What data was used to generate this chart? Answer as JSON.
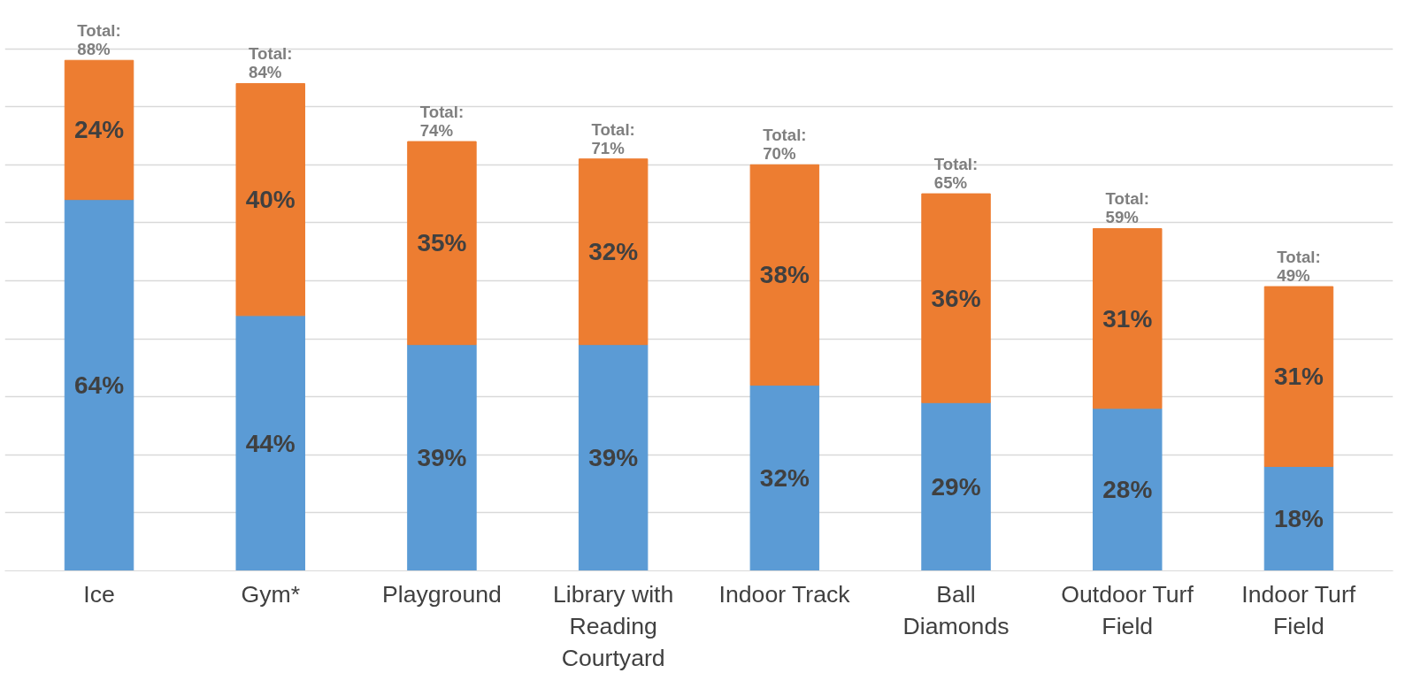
{
  "chart_data": {
    "type": "bar",
    "stacked": true,
    "categories": [
      "Ice",
      "Gym*",
      "Playground",
      "Library with Reading Courtyard",
      "Indoor Track",
      "Ball Diamonds",
      "Outdoor Turf Field",
      "Indoor Turf Field"
    ],
    "series": [
      {
        "color": "#5b9bd5",
        "values": [
          64,
          44,
          39,
          39,
          32,
          29,
          28,
          18
        ],
        "value_labels": [
          "64%",
          "44%",
          "39%",
          "39%",
          "32%",
          "29%",
          "28%",
          "18%"
        ]
      },
      {
        "color": "#ed7d31",
        "values": [
          24,
          40,
          35,
          32,
          38,
          36,
          31,
          31
        ],
        "value_labels": [
          "24%",
          "40%",
          "35%",
          "32%",
          "38%",
          "36%",
          "31%",
          "31%"
        ]
      }
    ],
    "totals": [
      "Total: 88%",
      "Total: 84%",
      "Total: 74%",
      "Total: 71%",
      "Total: 70%",
      "Total: 65%",
      "Total: 59%",
      "Total: 49%"
    ],
    "grid": "y",
    "tick_labels": "x"
  }
}
